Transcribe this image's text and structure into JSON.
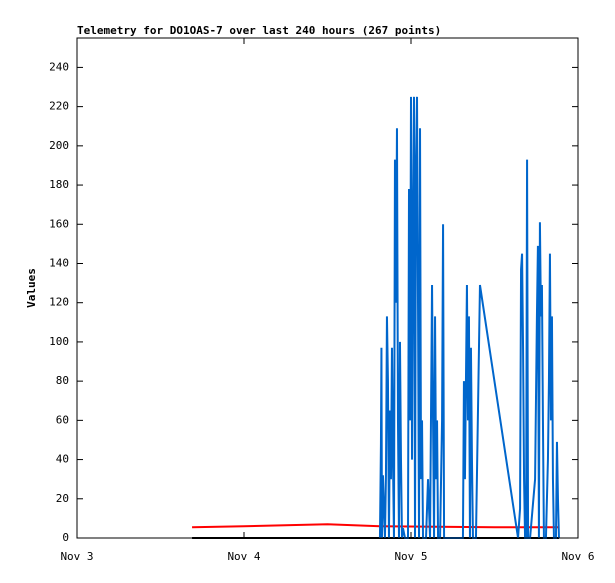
{
  "chart_data": {
    "type": "line",
    "title": "Telemetry for DO1OAS-7 over last 240 hours (267 points)",
    "ylabel": "Values",
    "xlim": [
      0,
      3
    ],
    "ylim": [
      0,
      255
    ],
    "xticks": [
      {
        "value": 0,
        "label": "Nov 3"
      },
      {
        "value": 1,
        "label": "Nov 4"
      },
      {
        "value": 2,
        "label": "Nov 5"
      },
      {
        "value": 3,
        "label": "Nov 6"
      }
    ],
    "yticks": [
      0,
      20,
      40,
      60,
      80,
      100,
      120,
      140,
      160,
      180,
      200,
      220,
      240
    ],
    "grid": false,
    "series": [
      {
        "color": "#000000",
        "x": [
          0.689,
          2.886
        ],
        "values": [
          0,
          0
        ]
      },
      {
        "color": "#ff0000",
        "x": [
          0.689,
          1.0,
          1.5,
          1.814,
          2.5,
          2.886
        ],
        "values": [
          5.5,
          6,
          7,
          6,
          5.5,
          5.5
        ]
      },
      {
        "color": "#0066cc",
        "x": [
          1.814,
          1.82,
          1.823,
          1.826,
          1.832,
          1.838,
          1.844,
          1.85,
          1.856,
          1.862,
          1.868,
          1.874,
          1.88,
          1.886,
          1.892,
          1.898,
          1.904,
          1.91,
          1.916,
          1.922,
          1.928,
          1.934,
          1.94,
          1.946,
          1.952,
          1.964,
          1.982,
          1.988,
          1.994,
          2.0,
          2.006,
          2.012,
          2.018,
          2.024,
          2.03,
          2.036,
          2.042,
          2.048,
          2.054,
          2.06,
          2.066,
          2.072,
          2.09,
          2.102,
          2.114,
          2.126,
          2.132,
          2.138,
          2.144,
          2.15,
          2.156,
          2.162,
          2.174,
          2.186,
          2.192,
          2.198,
          2.21,
          2.311,
          2.317,
          2.323,
          2.329,
          2.335,
          2.341,
          2.347,
          2.353,
          2.359,
          2.365,
          2.371,
          2.389,
          2.413,
          2.641,
          2.653,
          2.659,
          2.665,
          2.671,
          2.677,
          2.683,
          2.689,
          2.695,
          2.701,
          2.713,
          2.743,
          2.754,
          2.76,
          2.766,
          2.772,
          2.778,
          2.784,
          2.79,
          2.796,
          2.808,
          2.82,
          2.826,
          2.832,
          2.838,
          2.844,
          2.85,
          2.856,
          2.868,
          2.874,
          2.88,
          2.886
        ],
        "values": [
          0,
          48,
          97,
          0,
          32,
          15,
          0,
          32,
          113,
          80,
          0,
          65,
          30,
          97,
          40,
          0,
          193,
          120,
          209,
          60,
          0,
          100,
          40,
          0,
          5,
          0,
          0,
          178,
          60,
          225,
          40,
          160,
          225,
          0,
          190,
          225,
          120,
          0,
          209,
          30,
          60,
          0,
          0,
          30,
          0,
          129,
          60,
          0,
          113,
          30,
          60,
          0,
          0,
          60,
          160,
          0,
          0,
          0,
          80,
          30,
          80,
          129,
          60,
          113,
          0,
          97,
          40,
          0,
          0,
          129,
          0,
          15,
          137,
          145,
          97,
          30,
          0,
          0,
          193,
          0,
          0,
          30,
          113,
          149,
          0,
          161,
          113,
          129,
          60,
          0,
          0,
          40,
          80,
          145,
          60,
          113,
          30,
          0,
          0,
          49,
          20,
          0
        ]
      }
    ]
  }
}
